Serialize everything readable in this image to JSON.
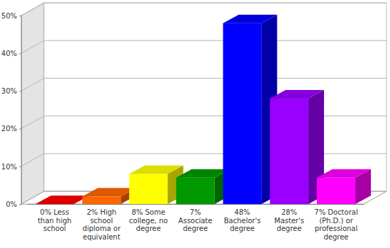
{
  "chart_data": {
    "type": "bar",
    "categories": [
      "0% Less than high school",
      "2% High school diploma or equivalent",
      "8% Some college, no degree",
      "7% Associate degree",
      "48% Bachelor's degree",
      "28% Master's degree",
      "7% Doctoral (Ph.D.) or professional degree"
    ],
    "values": [
      0,
      2,
      8,
      7,
      48,
      28,
      7
    ],
    "colors": [
      "#ff0000",
      "#ff6600",
      "#ffff00",
      "#009900",
      "#0000ff",
      "#9900ff",
      "#ff00ff"
    ],
    "ylim": [
      0,
      50
    ],
    "yticks": [
      {
        "value": 0,
        "label": "0%"
      },
      {
        "value": 10,
        "label": "10%"
      },
      {
        "value": 20,
        "label": "20%"
      },
      {
        "value": 30,
        "label": "30%"
      },
      {
        "value": 40,
        "label": "40%"
      },
      {
        "value": 50,
        "label": "50%"
      }
    ],
    "grid": true
  }
}
